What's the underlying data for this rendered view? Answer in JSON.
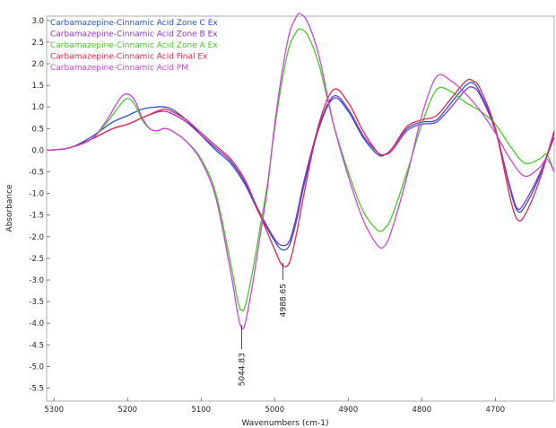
{
  "chart_data": {
    "type": "line",
    "xlabel": "Wavenumbers (cm-1)",
    "ylabel": "Absorbance",
    "xlim": [
      5310,
      4620
    ],
    "ylim": [
      -5.8,
      3.1
    ],
    "x_reversed": true,
    "grid": false,
    "legend_position": "top-left",
    "x_ticks": [
      5300,
      5200,
      5100,
      5000,
      4900,
      4800,
      4700
    ],
    "y_ticks": [
      3.0,
      2.5,
      2.0,
      1.5,
      1.0,
      0.5,
      0.0,
      -0.5,
      -1.0,
      -1.5,
      -2.0,
      -2.5,
      -3.0,
      -3.5,
      -4.0,
      -4.5,
      -5.0,
      -5.5
    ],
    "y_tick_labels": [
      "3.0",
      "2.5",
      "2.0",
      "1.5",
      "1.0",
      "0.5",
      "0.0",
      "-0.5",
      "-1.0",
      "-1.5",
      "-2.0",
      "-2.5",
      "-3.0",
      "-3.5",
      "-4.0",
      "-4.5",
      "-5.0",
      "-5.5"
    ],
    "x_tick_labels": [
      "5300",
      "5200",
      "5100",
      "5000",
      "4900",
      "4800",
      "4700"
    ],
    "series": [
      {
        "name": "Carbamazepine-Cinnamic Acid Zone C Ex",
        "color": "#2255cc",
        "x": [
          5310,
          5280,
          5250,
          5220,
          5200,
          5180,
          5160,
          5150,
          5140,
          5120,
          5100,
          5080,
          5060,
          5040,
          5020,
          5000,
          4990,
          4980,
          4970,
          4960,
          4940,
          4920,
          4900,
          4880,
          4860,
          4850,
          4840,
          4820,
          4800,
          4780,
          4760,
          4740,
          4730,
          4720,
          4700,
          4680,
          4670,
          4660,
          4640,
          4620
        ],
        "y": [
          0.0,
          0.05,
          0.3,
          0.65,
          0.8,
          0.95,
          1.0,
          1.0,
          0.95,
          0.7,
          0.35,
          0.0,
          -0.3,
          -0.8,
          -1.5,
          -2.1,
          -2.3,
          -2.2,
          -1.6,
          -0.8,
          0.5,
          1.2,
          0.9,
          0.3,
          -0.1,
          -0.1,
          0.05,
          0.5,
          0.65,
          0.7,
          1.1,
          1.5,
          1.55,
          1.3,
          0.5,
          -0.9,
          -1.4,
          -1.3,
          -0.6,
          0.4
        ]
      },
      {
        "name": "Carbamazepine-Cinnamic Acid Zone B Ex",
        "color": "#8833cc",
        "x": [
          5310,
          5280,
          5250,
          5220,
          5200,
          5180,
          5160,
          5150,
          5140,
          5120,
          5100,
          5080,
          5060,
          5040,
          5020,
          5000,
          4990,
          4980,
          4970,
          4960,
          4940,
          4920,
          4900,
          4880,
          4860,
          4850,
          4840,
          4820,
          4800,
          4780,
          4760,
          4740,
          4730,
          4720,
          4700,
          4680,
          4670,
          4660,
          4640,
          4620
        ],
        "y": [
          0.0,
          0.05,
          0.25,
          0.5,
          0.6,
          0.75,
          0.88,
          0.9,
          0.85,
          0.65,
          0.35,
          0.05,
          -0.25,
          -0.75,
          -1.45,
          -2.05,
          -2.2,
          -2.1,
          -1.5,
          -0.7,
          0.55,
          1.25,
          0.95,
          0.35,
          -0.05,
          -0.1,
          0.0,
          0.45,
          0.6,
          0.65,
          1.0,
          1.4,
          1.45,
          1.25,
          0.45,
          -0.85,
          -1.35,
          -1.2,
          -0.55,
          0.3
        ]
      },
      {
        "name": "Carbamazepine-Cinnamic Acid Zone A Ex",
        "color": "#44cc22",
        "x": [
          5310,
          5280,
          5250,
          5230,
          5210,
          5200,
          5190,
          5180,
          5170,
          5160,
          5150,
          5140,
          5120,
          5100,
          5080,
          5060,
          5050,
          5045,
          5040,
          5030,
          5020,
          5010,
          5000,
          4990,
          4980,
          4970,
          4965,
          4955,
          4940,
          4920,
          4900,
          4880,
          4860,
          4850,
          4840,
          4820,
          4800,
          4780,
          4760,
          4740,
          4720,
          4700,
          4680,
          4660,
          4640,
          4630,
          4620
        ],
        "y": [
          0.0,
          0.05,
          0.25,
          0.6,
          1.05,
          1.2,
          1.05,
          0.7,
          0.5,
          0.45,
          0.5,
          0.45,
          0.2,
          -0.2,
          -1.0,
          -2.6,
          -3.5,
          -3.7,
          -3.6,
          -2.8,
          -1.8,
          -0.8,
          0.5,
          1.6,
          2.4,
          2.75,
          2.8,
          2.65,
          2.0,
          0.6,
          -0.5,
          -1.4,
          -1.85,
          -1.8,
          -1.5,
          -0.5,
          0.6,
          1.4,
          1.35,
          1.1,
          0.9,
          0.6,
          0.1,
          -0.3,
          -0.2,
          -0.1,
          -0.5
        ]
      },
      {
        "name": "Carbamazepine-Cinnamic Acid Final Ex",
        "color": "#ee2244",
        "x": [
          5310,
          5280,
          5250,
          5220,
          5200,
          5180,
          5160,
          5150,
          5140,
          5120,
          5100,
          5080,
          5060,
          5040,
          5020,
          5000,
          4990,
          4980,
          4970,
          4960,
          4940,
          4920,
          4900,
          4880,
          4860,
          4850,
          4840,
          4820,
          4800,
          4780,
          4760,
          4740,
          4730,
          4720,
          4700,
          4680,
          4670,
          4660,
          4640,
          4620
        ],
        "y": [
          0.0,
          0.05,
          0.25,
          0.5,
          0.6,
          0.75,
          0.9,
          0.95,
          0.9,
          0.7,
          0.4,
          0.1,
          -0.2,
          -0.7,
          -1.5,
          -2.3,
          -2.65,
          -2.6,
          -1.9,
          -1.0,
          0.6,
          1.4,
          1.1,
          0.45,
          -0.05,
          -0.1,
          0.05,
          0.55,
          0.7,
          0.8,
          1.2,
          1.6,
          1.6,
          1.4,
          0.5,
          -1.1,
          -1.6,
          -1.5,
          -0.7,
          0.45
        ]
      },
      {
        "name": "Carbamazepine-Cinnamic Acid PM",
        "color": "#cc44dd",
        "x": [
          5310,
          5280,
          5250,
          5230,
          5210,
          5200,
          5190,
          5180,
          5170,
          5160,
          5150,
          5140,
          5120,
          5100,
          5080,
          5060,
          5050,
          5045,
          5040,
          5030,
          5020,
          5010,
          5000,
          4990,
          4980,
          4970,
          4965,
          4955,
          4940,
          4920,
          4900,
          4880,
          4860,
          4850,
          4840,
          4820,
          4800,
          4780,
          4760,
          4740,
          4720,
          4700,
          4680,
          4660,
          4640,
          4630,
          4620
        ],
        "y": [
          0.0,
          0.05,
          0.25,
          0.65,
          1.2,
          1.3,
          1.15,
          0.75,
          0.5,
          0.45,
          0.5,
          0.45,
          0.2,
          -0.25,
          -1.1,
          -2.8,
          -3.8,
          -4.1,
          -4.0,
          -3.1,
          -2.0,
          -0.9,
          0.6,
          1.8,
          2.7,
          3.1,
          3.15,
          2.95,
          2.2,
          0.6,
          -0.6,
          -1.6,
          -2.2,
          -2.2,
          -1.8,
          -0.6,
          0.8,
          1.7,
          1.6,
          1.3,
          0.9,
          0.4,
          -0.2,
          -0.6,
          -0.4,
          -0.2,
          -0.5
        ]
      }
    ],
    "annotations": [
      {
        "label": "5044.83",
        "x": 5044.83,
        "y": -4.05,
        "end_y": -4.6
      },
      {
        "label": "4988.65",
        "x": 4988.65,
        "y": -2.6,
        "end_y": -3.0
      }
    ]
  }
}
